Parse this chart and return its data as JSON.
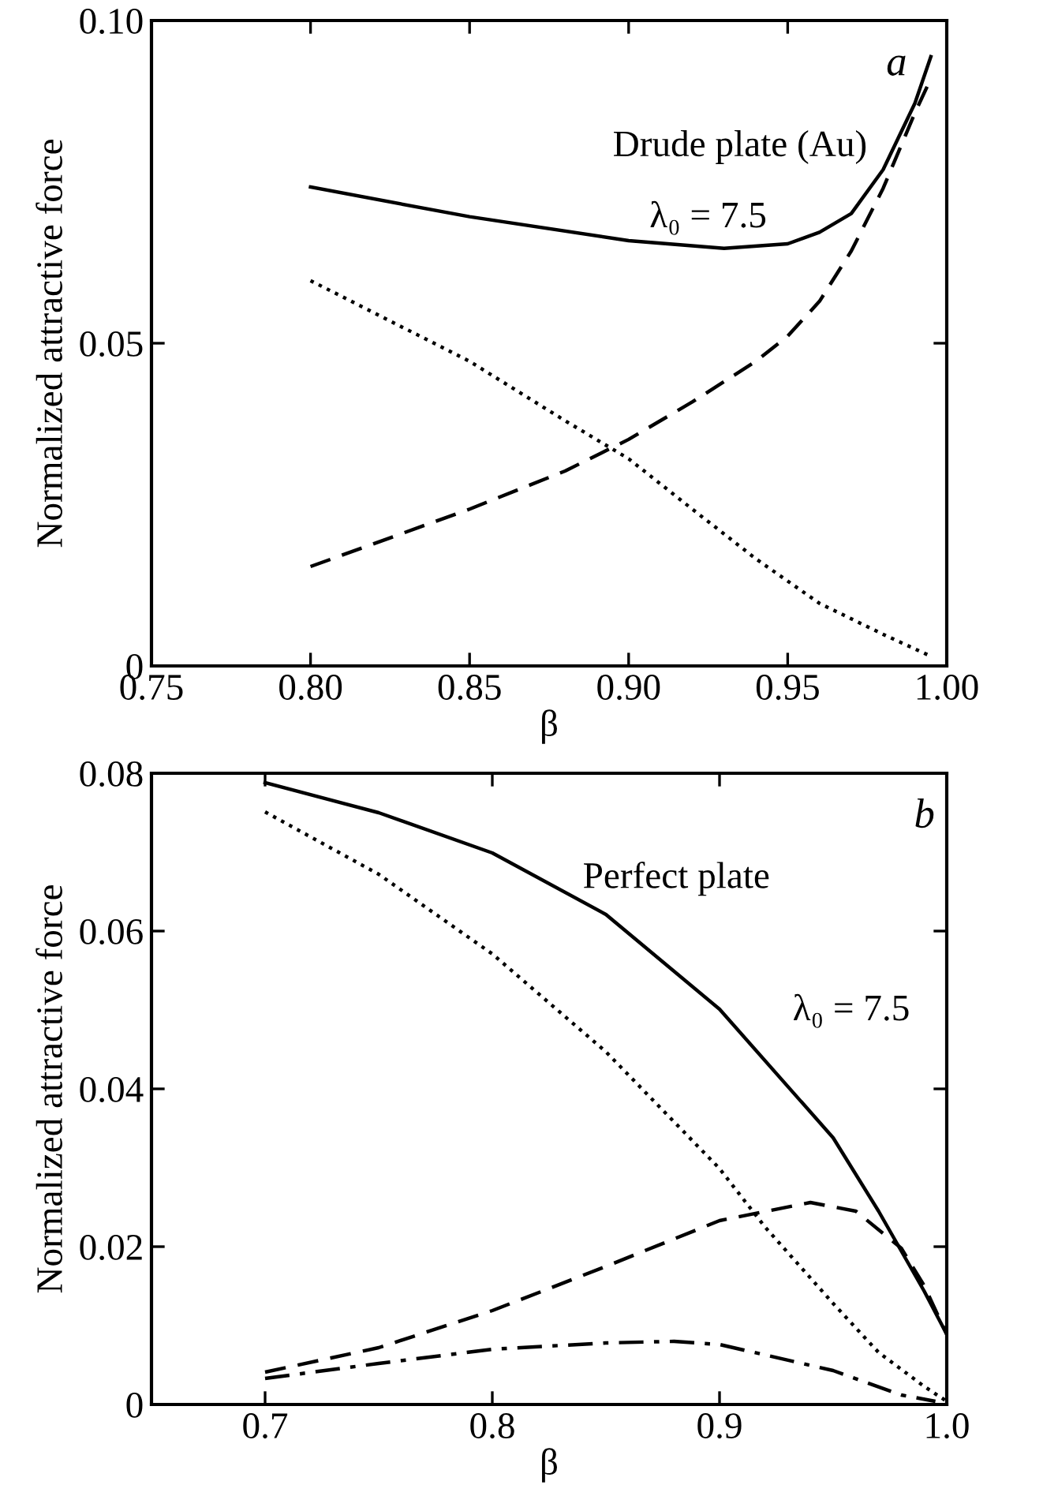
{
  "chart_data": [
    {
      "type": "line",
      "xlabel": "β",
      "ylabel": "Normalized attractive force",
      "xlim": [
        0.75,
        1.0
      ],
      "ylim": [
        0,
        0.1
      ],
      "xticks": [
        {
          "value": 0.75,
          "label": "0.75"
        },
        {
          "value": 0.8,
          "label": "0.80"
        },
        {
          "value": 0.85,
          "label": "0.85"
        },
        {
          "value": 0.9,
          "label": "0.90"
        },
        {
          "value": 0.95,
          "label": "0.95"
        },
        {
          "value": 1.0,
          "label": "1.00"
        }
      ],
      "yticks": [
        0,
        {
          "value": 0.05,
          "label": "0.05"
        },
        {
          "value": 0.1,
          "label": "0.10"
        }
      ],
      "grid": false,
      "legend": false,
      "annotations": [
        "a",
        "Drude plate (Au)",
        "λ₀ = 7.5"
      ],
      "series": [
        {
          "color": "#000000",
          "line_style": "solid",
          "x": [
            0.8,
            0.85,
            0.9,
            0.93,
            0.95,
            0.96,
            0.97,
            0.98,
            0.99,
            0.995
          ],
          "values": [
            0.0742,
            0.0696,
            0.0659,
            0.0647,
            0.0654,
            0.0672,
            0.0701,
            0.0769,
            0.0872,
            0.0944
          ]
        },
        {
          "color": "#000000",
          "line_style": "dashed",
          "x": [
            0.8,
            0.85,
            0.88,
            0.9,
            0.92,
            0.94,
            0.95,
            0.96,
            0.97,
            0.98,
            0.99,
            0.995
          ],
          "values": [
            0.0154,
            0.0243,
            0.0302,
            0.0351,
            0.0409,
            0.0472,
            0.0511,
            0.0565,
            0.0643,
            0.074,
            0.0857,
            0.091
          ]
        },
        {
          "color": "#000000",
          "line_style": "dotted",
          "x": [
            0.8,
            0.85,
            0.88,
            0.9,
            0.92,
            0.94,
            0.96,
            0.98,
            0.995
          ],
          "values": [
            0.0597,
            0.0472,
            0.038,
            0.0321,
            0.0243,
            0.0166,
            0.0097,
            0.0049,
            0.0015
          ]
        }
      ]
    },
    {
      "type": "line",
      "xlabel": "β",
      "ylabel": "Normalized attractive force",
      "xlim": [
        0.65,
        1.0
      ],
      "ylim": [
        0,
        0.08
      ],
      "xticks": [
        0.7,
        0.8,
        0.9,
        {
          "value": 1.0,
          "label": "1.0"
        }
      ],
      "yticks": [
        0,
        0.02,
        0.04,
        0.06,
        0.08
      ],
      "grid": false,
      "legend": false,
      "annotations": [
        "b",
        "Perfect plate",
        "λ₀ = 7.5"
      ],
      "series": [
        {
          "color": "#000000",
          "line_style": "solid",
          "x": [
            0.7,
            0.75,
            0.8,
            0.85,
            0.9,
            0.95,
            0.97,
            0.99,
            1.0
          ],
          "values": [
            0.0788,
            0.075,
            0.0699,
            0.0621,
            0.0501,
            0.0338,
            0.0245,
            0.0144,
            0.0089
          ]
        },
        {
          "color": "#000000",
          "line_style": "dotted",
          "x": [
            0.7,
            0.75,
            0.8,
            0.85,
            0.9,
            0.92,
            0.95,
            0.97,
            0.99,
            1.0
          ],
          "values": [
            0.0751,
            0.0672,
            0.0571,
            0.0447,
            0.0299,
            0.0225,
            0.0128,
            0.0066,
            0.0023,
            0.0004
          ]
        },
        {
          "color": "#000000",
          "line_style": "dashed",
          "x": [
            0.7,
            0.75,
            0.8,
            0.85,
            0.9,
            0.94,
            0.96,
            0.98,
            0.99,
            1.0
          ],
          "values": [
            0.0041,
            0.0072,
            0.0119,
            0.0175,
            0.0233,
            0.0256,
            0.0245,
            0.0198,
            0.0151,
            0.0089
          ]
        },
        {
          "color": "#000000",
          "line_style": "dashdot",
          "x": [
            0.7,
            0.75,
            0.8,
            0.85,
            0.88,
            0.9,
            0.95,
            0.98,
            0.995
          ],
          "values": [
            0.0033,
            0.0052,
            0.007,
            0.0078,
            0.008,
            0.0076,
            0.0043,
            0.0012,
            0.0004
          ]
        }
      ]
    }
  ]
}
